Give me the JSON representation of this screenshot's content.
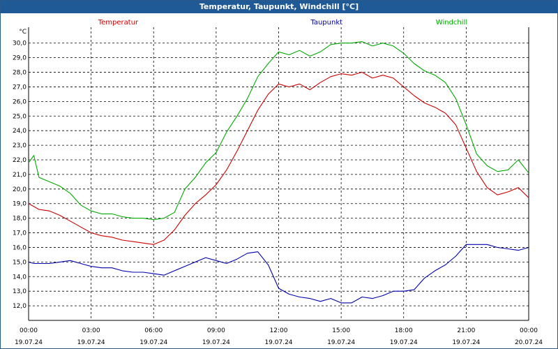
{
  "window": {
    "title": "Temperatur, Taupunkt, Windchill [°C]"
  },
  "chart_data": {
    "type": "line",
    "title": "Temperatur, Taupunkt, Windchill [°C]",
    "unit": "°C",
    "ylim": [
      11.0,
      30.8
    ],
    "yticks": [
      "12,0",
      "13,0",
      "14,0",
      "15,0",
      "16,0",
      "17,0",
      "18,0",
      "19,0",
      "20,0",
      "21,0",
      "22,0",
      "23,0",
      "24,0",
      "25,0",
      "26,0",
      "27,0",
      "28,0",
      "29,0",
      "30,0"
    ],
    "x_hours": [
      0,
      0.25,
      0.5,
      1,
      1.5,
      2,
      2.5,
      3,
      3.5,
      4,
      4.5,
      5,
      5.5,
      6,
      6.5,
      7,
      7.5,
      8,
      8.5,
      9,
      9.5,
      10,
      10.5,
      11,
      11.5,
      12,
      12.5,
      13,
      13.5,
      14,
      14.5,
      15,
      15.5,
      16,
      16.5,
      17,
      17.5,
      18,
      18.5,
      19,
      19.5,
      20,
      20.5,
      21,
      21.5,
      22,
      22.5,
      23,
      23.5,
      24
    ],
    "xticks": [
      {
        "time": "00:00",
        "date": "19.07.24"
      },
      {
        "time": "03:00",
        "date": "19.07.24"
      },
      {
        "time": "06:00",
        "date": "19.07.24"
      },
      {
        "time": "09:00",
        "date": "19.07.24"
      },
      {
        "time": "12:00",
        "date": "19.07.24"
      },
      {
        "time": "15:00",
        "date": "19.07.24"
      },
      {
        "time": "18:00",
        "date": "19.07.24"
      },
      {
        "time": "21:00",
        "date": "19.07.24"
      },
      {
        "time": "00:00",
        "date": "20.07.24"
      }
    ],
    "grid": true,
    "legend_position": "top",
    "series": [
      {
        "name": "Temperatur",
        "color": "#cc0000",
        "values": [
          19.0,
          18.8,
          18.6,
          18.5,
          18.2,
          17.8,
          17.4,
          17.0,
          16.8,
          16.7,
          16.5,
          16.4,
          16.3,
          16.2,
          16.5,
          17.2,
          18.2,
          19.0,
          19.6,
          20.3,
          21.3,
          22.6,
          24.0,
          25.4,
          26.5,
          27.2,
          27.0,
          27.2,
          26.8,
          27.3,
          27.7,
          27.9,
          27.8,
          28.0,
          27.6,
          27.8,
          27.6,
          27.0,
          26.4,
          25.9,
          25.6,
          25.2,
          24.4,
          22.8,
          21.2,
          20.1,
          19.6,
          19.8,
          20.1,
          19.4
        ]
      },
      {
        "name": "Taupunkt",
        "color": "#0000aa",
        "values": [
          15.0,
          14.9,
          14.9,
          14.9,
          15.0,
          15.1,
          14.9,
          14.7,
          14.6,
          14.6,
          14.4,
          14.3,
          14.3,
          14.2,
          14.1,
          14.4,
          14.7,
          15.0,
          15.3,
          15.1,
          14.9,
          15.2,
          15.6,
          15.7,
          14.8,
          13.2,
          12.8,
          12.6,
          12.5,
          12.3,
          12.5,
          12.2,
          12.2,
          12.6,
          12.5,
          12.7,
          13.0,
          13.0,
          13.1,
          13.9,
          14.4,
          14.8,
          15.4,
          16.2,
          16.2,
          16.2,
          16.0,
          15.9,
          15.8,
          16.0
        ]
      },
      {
        "name": "Windchill",
        "color": "#00aa00",
        "values": [
          21.8,
          22.3,
          20.8,
          20.5,
          20.2,
          19.7,
          18.9,
          18.5,
          18.3,
          18.3,
          18.1,
          18.0,
          18.0,
          17.9,
          18.0,
          18.4,
          20.0,
          20.8,
          21.8,
          22.5,
          23.9,
          25.0,
          26.2,
          27.7,
          28.6,
          29.4,
          29.2,
          29.5,
          29.1,
          29.4,
          29.9,
          30.0,
          30.0,
          30.1,
          29.8,
          30.0,
          29.8,
          29.3,
          28.6,
          28.1,
          27.8,
          27.3,
          26.2,
          24.4,
          22.4,
          21.6,
          21.2,
          21.3,
          22.0,
          21.1
        ]
      }
    ]
  }
}
